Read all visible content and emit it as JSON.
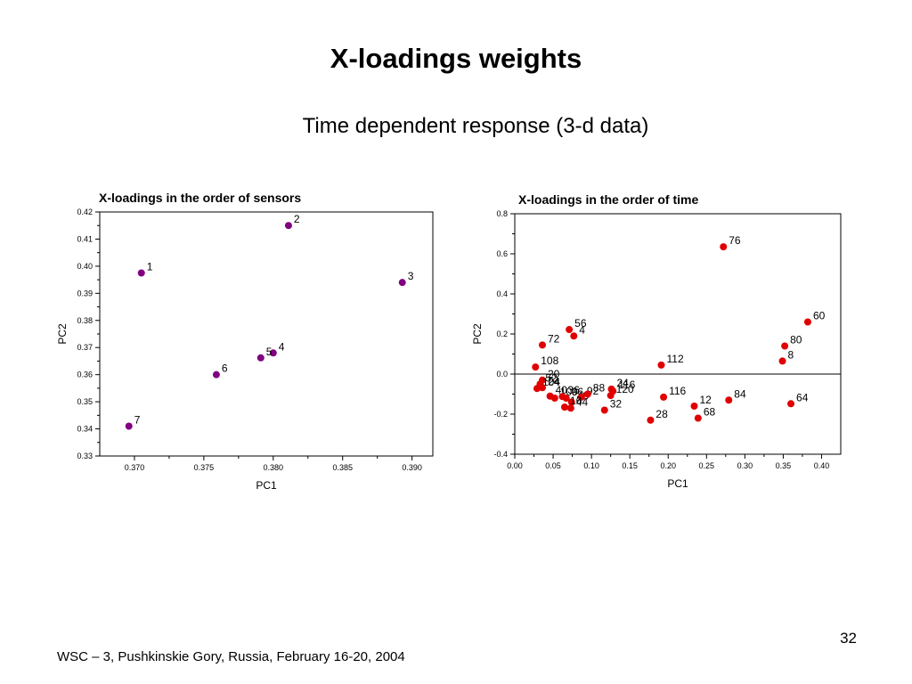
{
  "slide": {
    "title": "X-loadings weights",
    "subtitle": "Time dependent response (3-d data)",
    "footer": "WSC – 3, Pushkinskie Gory, Russia, February 16-20, 2004",
    "page_number": "32"
  },
  "chart_data": [
    {
      "type": "scatter",
      "title": "X-loadings  in the order of sensors",
      "xlabel": "PC1",
      "ylabel": "PC2",
      "xlim": [
        0.3675,
        0.3915
      ],
      "ylim": [
        0.33,
        0.42
      ],
      "xticks": [
        "0.370",
        "0.375",
        "0.380",
        "0.385",
        "0.390"
      ],
      "yticks": [
        "0.33",
        "0.34",
        "0.35",
        "0.36",
        "0.37",
        "0.38",
        "0.39",
        "0.40",
        "0.41",
        "0.42"
      ],
      "point_color": "#800080",
      "zero_line": false,
      "points": [
        {
          "label": "1",
          "x": 0.3705,
          "y": 0.3975
        },
        {
          "label": "2",
          "x": 0.3811,
          "y": 0.415
        },
        {
          "label": "3",
          "x": 0.3893,
          "y": 0.394
        },
        {
          "label": "4",
          "x": 0.38,
          "y": 0.368
        },
        {
          "label": "5",
          "x": 0.3791,
          "y": 0.3662
        },
        {
          "label": "6",
          "x": 0.3759,
          "y": 0.36
        },
        {
          "label": "7",
          "x": 0.3696,
          "y": 0.341
        }
      ]
    },
    {
      "type": "scatter",
      "title": "X-loadings in the order of time",
      "xlabel": "PC1",
      "ylabel": "PC2",
      "xlim": [
        0.0,
        0.425
      ],
      "ylim": [
        -0.4,
        0.8
      ],
      "xticks": [
        "0.00",
        "0.05",
        "0.10",
        "0.15",
        "0.20",
        "0.25",
        "0.30",
        "0.35",
        "0.40"
      ],
      "yticks": [
        "-0.4",
        "-0.2",
        "0.0",
        "0.2",
        "0.4",
        "0.6",
        "0.8"
      ],
      "point_color": "#e00000",
      "zero_line": true,
      "points": [
        {
          "label": "76",
          "x": 0.272,
          "y": 0.635
        },
        {
          "label": "60",
          "x": 0.382,
          "y": 0.26
        },
        {
          "label": "56",
          "x": 0.071,
          "y": 0.222
        },
        {
          "label": "4",
          "x": 0.077,
          "y": 0.19
        },
        {
          "label": "72",
          "x": 0.036,
          "y": 0.145
        },
        {
          "label": "80",
          "x": 0.352,
          "y": 0.14
        },
        {
          "label": "8",
          "x": 0.349,
          "y": 0.065
        },
        {
          "label": "108",
          "x": 0.027,
          "y": 0.035
        },
        {
          "label": "112",
          "x": 0.191,
          "y": 0.045
        },
        {
          "label": "20",
          "x": 0.036,
          "y": -0.03
        },
        {
          "label": "52",
          "x": 0.033,
          "y": -0.05
        },
        {
          "label": "104",
          "x": 0.029,
          "y": -0.072
        },
        {
          "label": "24",
          "x": 0.036,
          "y": -0.068
        },
        {
          "label": "40",
          "x": 0.046,
          "y": -0.11
        },
        {
          "label": "100",
          "x": 0.052,
          "y": -0.12
        },
        {
          "label": "36",
          "x": 0.062,
          "y": -0.112
        },
        {
          "label": "96",
          "x": 0.067,
          "y": -0.12
        },
        {
          "label": "48",
          "x": 0.074,
          "y": -0.14
        },
        {
          "label": "92",
          "x": 0.087,
          "y": -0.115
        },
        {
          "label": "88",
          "x": 0.095,
          "y": -0.1
        },
        {
          "label": "44",
          "x": 0.073,
          "y": -0.17
        },
        {
          "label": "16",
          "x": 0.065,
          "y": -0.165
        },
        {
          "label": "32",
          "x": 0.117,
          "y": -0.18
        },
        {
          "label": "24",
          "x": 0.126,
          "y": -0.075
        },
        {
          "label": "116",
          "x": 0.128,
          "y": -0.085
        },
        {
          "label": "120",
          "x": 0.125,
          "y": -0.107
        },
        {
          "label": "116",
          "x": 0.194,
          "y": -0.115
        },
        {
          "label": "12",
          "x": 0.234,
          "y": -0.16
        },
        {
          "label": "84",
          "x": 0.279,
          "y": -0.13
        },
        {
          "label": "68",
          "x": 0.239,
          "y": -0.22
        },
        {
          "label": "28",
          "x": 0.177,
          "y": -0.23
        },
        {
          "label": "64",
          "x": 0.36,
          "y": -0.148
        }
      ]
    }
  ]
}
